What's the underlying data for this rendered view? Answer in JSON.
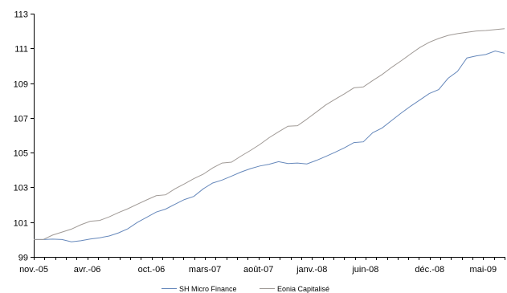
{
  "chart_data": {
    "type": "line",
    "title": "",
    "xlabel": "",
    "ylabel": "",
    "ylim": [
      99,
      113
    ],
    "yticks": [
      99,
      101,
      103,
      105,
      107,
      109,
      111,
      113
    ],
    "x_tick_labels": [
      "nov.-05",
      "avr.-06",
      "oct.-06",
      "mars-07",
      "août-07",
      "janv.-08",
      "juin-08",
      "déc.-08",
      "mai-09"
    ],
    "x_tick_month_index": [
      0,
      5,
      11,
      16,
      21,
      26,
      31,
      37,
      42
    ],
    "x_range_months": [
      0,
      44
    ],
    "grid": false,
    "legend_position": "bottom-center",
    "series": [
      {
        "name": "SH Micro Finance",
        "color": "#6688bb",
        "values": [
          100.0,
          100.0,
          100.02,
          100.0,
          99.87,
          99.93,
          100.03,
          100.1,
          100.2,
          100.38,
          100.62,
          100.98,
          101.28,
          101.58,
          101.75,
          102.03,
          102.3,
          102.48,
          102.92,
          103.25,
          103.42,
          103.65,
          103.88,
          104.08,
          104.23,
          104.33,
          104.48,
          104.37,
          104.4,
          104.35,
          104.55,
          104.78,
          105.02,
          105.28,
          105.58,
          105.62,
          106.15,
          106.42,
          106.85,
          107.27,
          107.67,
          108.03,
          108.4,
          108.63,
          109.28,
          109.68,
          110.45,
          110.57,
          110.65,
          110.85,
          110.72
        ]
      },
      {
        "name": "Eonia Capitalisé",
        "color": "#a09a96",
        "values": [
          100.0,
          100.0,
          100.25,
          100.43,
          100.6,
          100.85,
          101.05,
          101.1,
          101.3,
          101.55,
          101.77,
          102.03,
          102.28,
          102.52,
          102.57,
          102.92,
          103.2,
          103.5,
          103.76,
          104.12,
          104.4,
          104.45,
          104.8,
          105.12,
          105.47,
          105.86,
          106.2,
          106.52,
          106.55,
          106.93,
          107.33,
          107.74,
          108.07,
          108.39,
          108.73,
          108.78,
          109.15,
          109.5,
          109.91,
          110.28,
          110.67,
          111.05,
          111.35,
          111.57,
          111.75,
          111.85,
          111.93,
          112.0,
          112.03,
          112.08,
          112.13
        ]
      }
    ]
  }
}
